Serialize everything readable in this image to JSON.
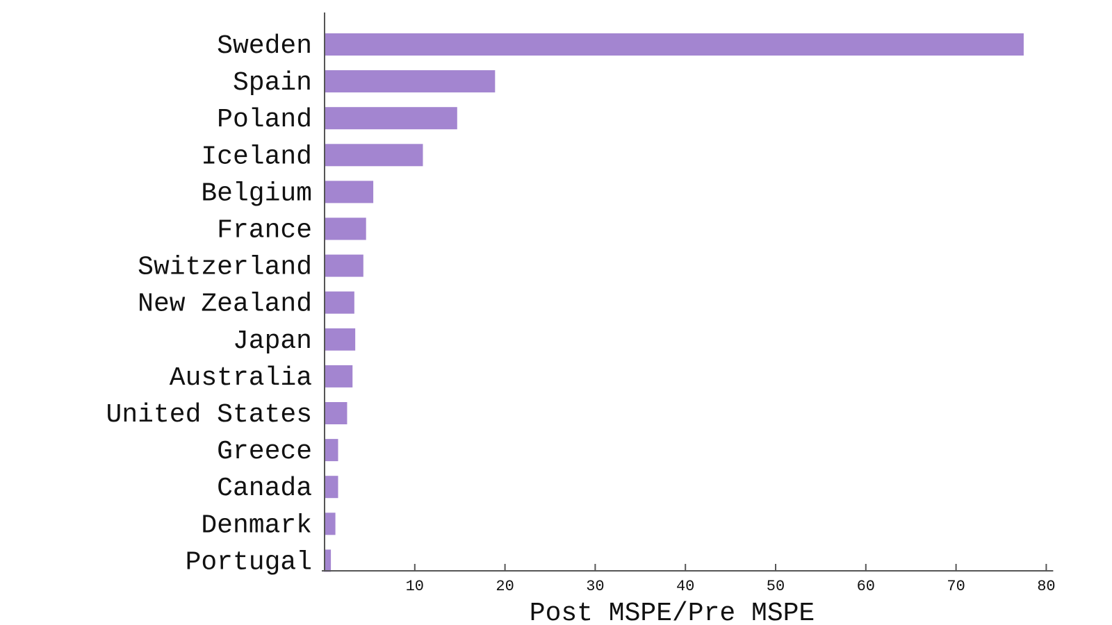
{
  "chart_data": {
    "type": "bar",
    "orientation": "horizontal",
    "categories": [
      "Sweden",
      "Spain",
      "Poland",
      "Iceland",
      "Belgium",
      "France",
      "Switzerland",
      "New Zealand",
      "Japan",
      "Australia",
      "United States",
      "Greece",
      "Canada",
      "Denmark",
      "Portugal"
    ],
    "values": [
      77.5,
      18.9,
      14.7,
      10.9,
      5.4,
      4.6,
      4.3,
      3.3,
      3.4,
      3.1,
      2.5,
      1.5,
      1.5,
      1.2,
      0.7
    ],
    "xlabel": "Post MSPE/Pre MSPE",
    "ylabel": "",
    "title": "",
    "xlim": [
      0,
      80
    ],
    "xticks": [
      10,
      20,
      30,
      40,
      50,
      60,
      70,
      80
    ],
    "grid": false,
    "bar_color": "#a385d0"
  }
}
